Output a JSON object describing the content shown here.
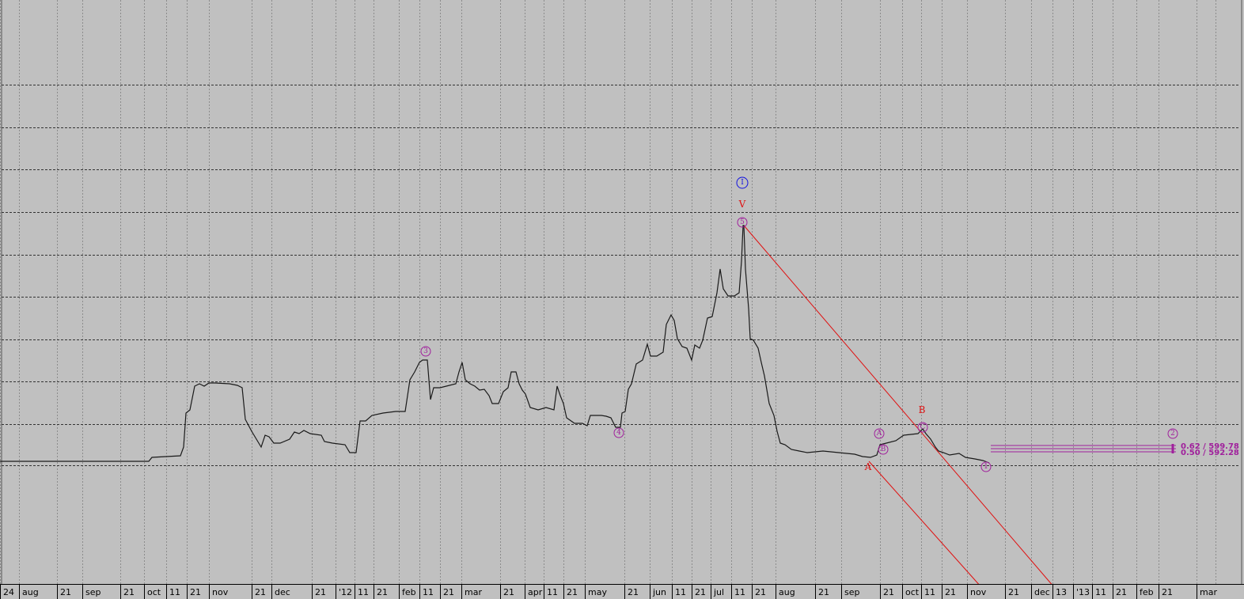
{
  "colors": {
    "background": "#c0c0c0",
    "price_line": "#1a1a1a",
    "grid_h": "#333333",
    "grid_v": "#8c8c8c",
    "wave_magenta": "#a0209c",
    "channel_red": "#e01010",
    "wave_blue": "#1010e0"
  },
  "chart_data": {
    "type": "line",
    "title": "",
    "xlabel": "",
    "ylabel": "",
    "x_axis_ticks": [
      "24",
      "aug",
      "21",
      "sep",
      "21",
      "oct",
      "11",
      "21",
      "nov",
      "21",
      "dec",
      "21",
      "'12",
      "11",
      "21",
      "feb",
      "11",
      "21",
      "mar",
      "21",
      "apr",
      "11",
      "21",
      "may",
      "21",
      "jun",
      "11",
      "21",
      "jul",
      "11",
      "21",
      "aug",
      "21",
      "sep",
      "21",
      "oct",
      "11",
      "21",
      "nov",
      "21",
      "dec",
      "13",
      "'13",
      "11",
      "21",
      "feb",
      "21",
      "mar"
    ],
    "grid": true,
    "series": [
      {
        "values": [
          [
            0,
            583
          ],
          [
            100,
            583
          ],
          [
            188,
            583
          ],
          [
            192,
            578
          ],
          [
            228,
            576
          ],
          [
            232,
            565
          ],
          [
            235,
            522
          ],
          [
            240,
            518
          ],
          [
            246,
            488
          ],
          [
            252,
            485
          ],
          [
            258,
            488
          ],
          [
            264,
            484
          ],
          [
            272,
            484
          ],
          [
            290,
            485
          ],
          [
            300,
            487
          ],
          [
            306,
            490
          ],
          [
            310,
            530
          ],
          [
            318,
            545
          ],
          [
            324,
            555
          ],
          [
            330,
            565
          ],
          [
            335,
            550
          ],
          [
            340,
            552
          ],
          [
            346,
            560
          ],
          [
            354,
            560
          ],
          [
            366,
            555
          ],
          [
            372,
            546
          ],
          [
            378,
            548
          ],
          [
            384,
            544
          ],
          [
            392,
            548
          ],
          [
            406,
            550
          ],
          [
            410,
            558
          ],
          [
            420,
            560
          ],
          [
            436,
            562
          ],
          [
            442,
            572
          ],
          [
            450,
            572
          ],
          [
            455,
            532
          ],
          [
            462,
            532
          ],
          [
            470,
            525
          ],
          [
            484,
            522
          ],
          [
            500,
            520
          ],
          [
            512,
            520
          ],
          [
            518,
            480
          ],
          [
            524,
            470
          ],
          [
            530,
            458
          ],
          [
            534,
            455
          ],
          [
            540,
            455
          ],
          [
            544,
            505
          ],
          [
            548,
            490
          ],
          [
            556,
            490
          ],
          [
            564,
            488
          ],
          [
            576,
            485
          ],
          [
            580,
            470
          ],
          [
            584,
            458
          ],
          [
            588,
            480
          ],
          [
            594,
            485
          ],
          [
            600,
            488
          ],
          [
            606,
            493
          ],
          [
            612,
            492
          ],
          [
            618,
            500
          ],
          [
            622,
            510
          ],
          [
            630,
            510
          ],
          [
            636,
            495
          ],
          [
            642,
            490
          ],
          [
            646,
            470
          ],
          [
            652,
            470
          ],
          [
            656,
            485
          ],
          [
            660,
            493
          ],
          [
            664,
            498
          ],
          [
            670,
            515
          ],
          [
            680,
            518
          ],
          [
            690,
            515
          ],
          [
            700,
            518
          ],
          [
            704,
            488
          ],
          [
            708,
            500
          ],
          [
            712,
            510
          ],
          [
            716,
            528
          ],
          [
            726,
            535
          ],
          [
            736,
            535
          ],
          [
            742,
            538
          ],
          [
            746,
            525
          ],
          [
            752,
            525
          ],
          [
            760,
            525
          ],
          [
            766,
            526
          ],
          [
            772,
            528
          ],
          [
            778,
            540
          ],
          [
            784,
            540
          ],
          [
            786,
            522
          ],
          [
            790,
            520
          ],
          [
            794,
            492
          ],
          [
            798,
            485
          ],
          [
            804,
            460
          ],
          [
            812,
            455
          ],
          [
            818,
            435
          ],
          [
            822,
            450
          ],
          [
            830,
            450
          ],
          [
            838,
            445
          ],
          [
            842,
            410
          ],
          [
            848,
            398
          ],
          [
            852,
            405
          ],
          [
            856,
            428
          ],
          [
            862,
            438
          ],
          [
            868,
            440
          ],
          [
            874,
            455
          ],
          [
            878,
            436
          ],
          [
            884,
            440
          ],
          [
            888,
            430
          ],
          [
            894,
            402
          ],
          [
            900,
            400
          ],
          [
            906,
            370
          ],
          [
            910,
            340
          ],
          [
            914,
            365
          ],
          [
            920,
            374
          ],
          [
            928,
            374
          ],
          [
            934,
            370
          ],
          [
            937,
            330
          ],
          [
            939,
            285
          ],
          [
            940,
            285
          ],
          [
            942,
            340
          ],
          [
            946,
            390
          ],
          [
            948,
            428
          ],
          [
            952,
            430
          ],
          [
            958,
            440
          ],
          [
            962,
            458
          ],
          [
            966,
            475
          ],
          [
            972,
            510
          ],
          [
            978,
            525
          ],
          [
            982,
            545
          ],
          [
            986,
            560
          ],
          [
            992,
            562
          ],
          [
            1000,
            568
          ],
          [
            1010,
            570
          ],
          [
            1020,
            572
          ],
          [
            1040,
            570
          ],
          [
            1060,
            572
          ],
          [
            1080,
            574
          ],
          [
            1090,
            577
          ],
          [
            1100,
            578
          ],
          [
            1108,
            575
          ],
          [
            1112,
            562
          ],
          [
            1120,
            560
          ],
          [
            1132,
            557
          ],
          [
            1142,
            550
          ],
          [
            1160,
            548
          ],
          [
            1166,
            542
          ],
          [
            1170,
            548
          ],
          [
            1176,
            555
          ],
          [
            1182,
            565
          ],
          [
            1186,
            570
          ],
          [
            1192,
            572
          ],
          [
            1200,
            575
          ],
          [
            1212,
            573
          ],
          [
            1220,
            578
          ],
          [
            1232,
            580
          ],
          [
            1242,
            582
          ],
          [
            1250,
            585
          ]
        ]
      }
    ],
    "annotations": {
      "wave_circles": [
        {
          "label": "3",
          "at": [
            538,
            444
          ]
        },
        {
          "label": "4",
          "at": [
            782,
            547
          ]
        },
        {
          "label": "5",
          "at": [
            938,
            281
          ]
        },
        {
          "label": "A",
          "at": [
            1111,
            548
          ]
        },
        {
          "label": "B",
          "at": [
            1116,
            568
          ]
        },
        {
          "label": "C",
          "at": [
            1166,
            540
          ]
        },
        {
          "label": "1",
          "at": [
            1246,
            590
          ]
        },
        {
          "label": "2",
          "at": [
            1482,
            548
          ]
        }
      ],
      "blue_circle": {
        "label": "I",
        "at": [
          938,
          231
        ]
      },
      "red_letters": [
        {
          "label": "V",
          "at": [
            938,
            262
          ]
        },
        {
          "label": "B",
          "at": [
            1165,
            522
          ]
        },
        {
          "label": "A",
          "at": [
            1097,
            594
          ]
        }
      ],
      "channel_lines": [
        {
          "from": [
            940,
            285
          ],
          "to": [
            1332,
            742
          ]
        },
        {
          "from": [
            1098,
            583
          ],
          "to": [
            1240,
            742
          ]
        }
      ],
      "projection_lines": {
        "x_range": [
          1252,
          1486
        ],
        "y_levels": [
          563,
          567,
          571
        ]
      },
      "price_labels": [
        {
          "text": "0.62 / 599.78",
          "at": [
            1492,
            563
          ]
        },
        {
          "text": "0.50 / 592.28",
          "at": [
            1492,
            571
          ]
        }
      ]
    }
  }
}
